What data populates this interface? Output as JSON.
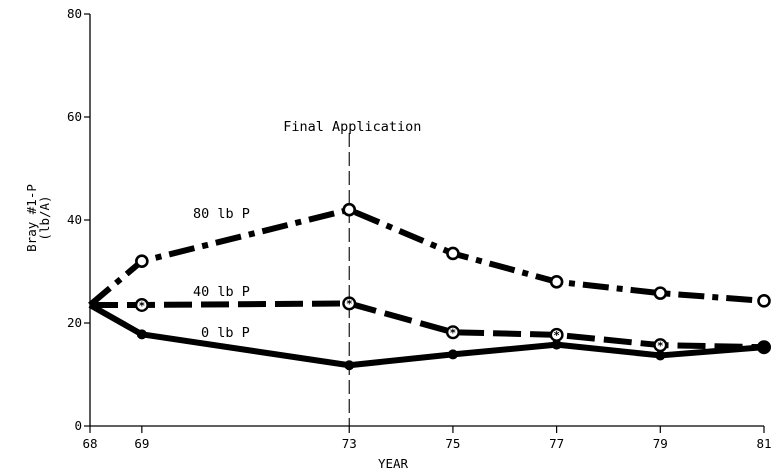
{
  "chart_data": {
    "type": "line",
    "xlabel": "YEAR",
    "ylabel_lines": [
      "Bray #1-P",
      "(lb/A)"
    ],
    "xlim": [
      68,
      81
    ],
    "ylim": [
      0,
      80
    ],
    "x_ticks": [
      68,
      69,
      73,
      75,
      77,
      79,
      81
    ],
    "y_ticks": [
      0,
      20,
      40,
      60,
      80
    ],
    "grid": false,
    "legend": "none (series labelled directly on lines)",
    "annotation": {
      "text": "Final Application",
      "x": 73
    },
    "series": [
      {
        "name": "80 lb P",
        "marker": "open-circle",
        "line_style": "dash-dot",
        "x": [
          68,
          69,
          73,
          75,
          77,
          79,
          81
        ],
        "y": [
          23.5,
          32,
          42,
          33.5,
          28,
          25.8,
          24.3
        ]
      },
      {
        "name": "40 lb P",
        "marker": "asterisk-circle",
        "line_style": "dashed",
        "x": [
          68,
          69,
          73,
          75,
          77,
          79,
          81
        ],
        "y": [
          23.5,
          23.5,
          23.8,
          18.2,
          17.7,
          15.7,
          15.3
        ]
      },
      {
        "name": "0 lb P",
        "marker": "filled-circle",
        "line_style": "solid",
        "x": [
          68,
          69,
          73,
          75,
          77,
          79,
          81
        ],
        "y": [
          23.5,
          17.8,
          11.8,
          13.9,
          15.8,
          13.7,
          15.3
        ]
      }
    ]
  }
}
